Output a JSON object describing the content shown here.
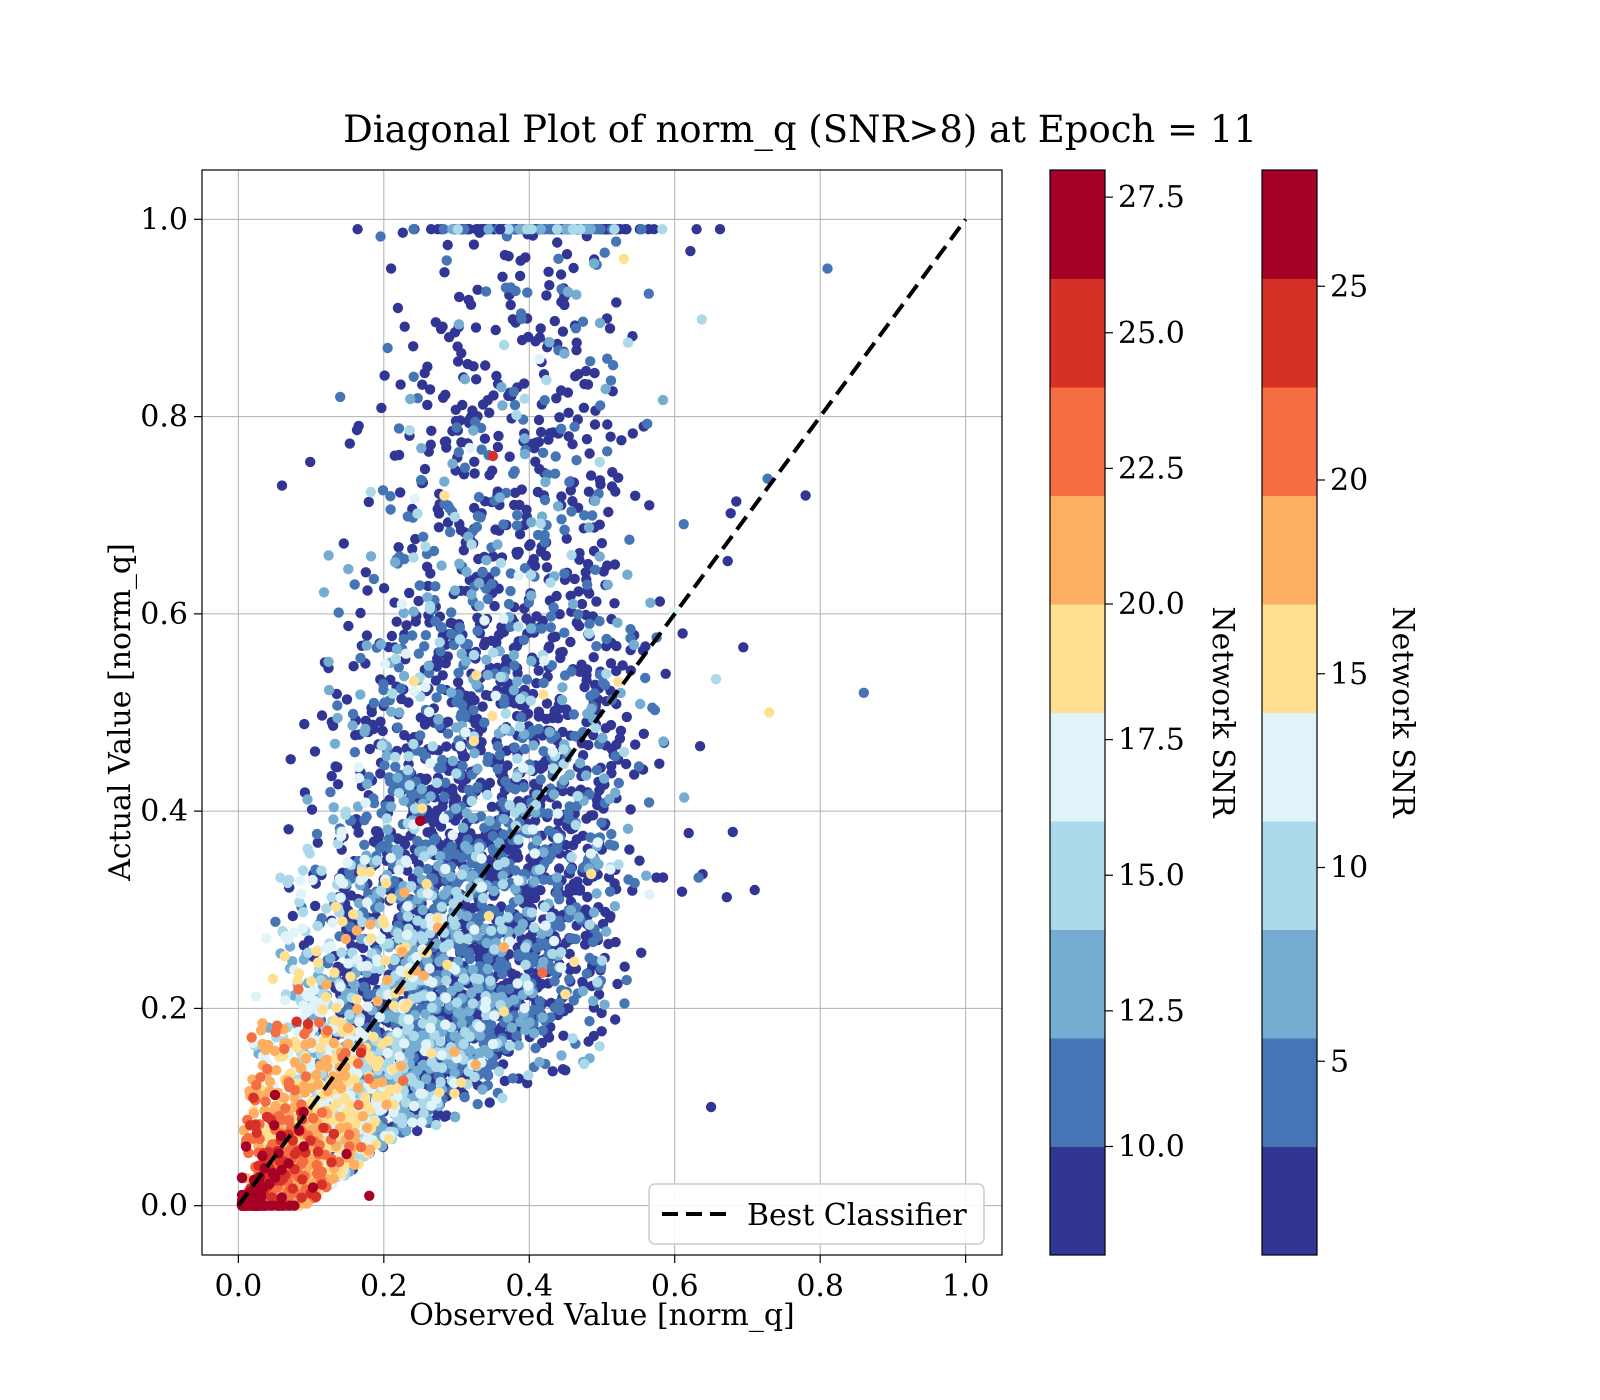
{
  "chart_data": {
    "type": "scatter",
    "title": "Diagonal Plot of norm_q (SNR>8) at Epoch = 11",
    "xlabel": "Observed Value [norm_q]",
    "ylabel": "Actual Value [norm_q]",
    "xlim": [
      -0.05,
      1.05
    ],
    "ylim": [
      -0.05,
      1.05
    ],
    "x_ticks": [
      "0.0",
      "0.2",
      "0.4",
      "0.6",
      "0.8",
      "1.0"
    ],
    "y_ticks": [
      "0.0",
      "0.2",
      "0.4",
      "0.6",
      "0.8",
      "1.0"
    ],
    "grid": true,
    "legend": {
      "position": "lower-right",
      "entries": [
        "Best Classifier"
      ]
    },
    "reference_line": {
      "name": "Best Classifier",
      "x": [
        0,
        1
      ],
      "y": [
        0,
        1
      ],
      "style": "dashed",
      "color": "#000000"
    },
    "colormap_colors": [
      "#313695",
      "#4575b4",
      "#74add1",
      "#abd9e9",
      "#e0f3f8",
      "#fee090",
      "#fdae61",
      "#f46d43",
      "#d73027",
      "#a50026"
    ],
    "colorbars": [
      {
        "label": "Network SNR",
        "range": [
          8,
          28
        ],
        "ticks": [
          "10.0",
          "12.5",
          "15.0",
          "17.5",
          "20.0",
          "22.5",
          "25.0",
          "27.5"
        ]
      },
      {
        "label": "Network SNR",
        "range": [
          0,
          28
        ],
        "ticks": [
          "5",
          "10",
          "15",
          "20",
          "25"
        ]
      }
    ],
    "sample_points": [
      {
        "x": 0.36,
        "y": 0.99,
        "snr": 9
      },
      {
        "x": 0.21,
        "y": 0.95,
        "snr": 9
      },
      {
        "x": 0.44,
        "y": 0.96,
        "snr": 11
      },
      {
        "x": 0.53,
        "y": 0.96,
        "snr": 19
      },
      {
        "x": 0.81,
        "y": 0.95,
        "snr": 11
      },
      {
        "x": 0.14,
        "y": 0.82,
        "snr": 11
      },
      {
        "x": 0.06,
        "y": 0.73,
        "snr": 9
      },
      {
        "x": 0.78,
        "y": 0.72,
        "snr": 9
      },
      {
        "x": 0.86,
        "y": 0.52,
        "snr": 11
      },
      {
        "x": 0.73,
        "y": 0.5,
        "snr": 19
      },
      {
        "x": 0.71,
        "y": 0.32,
        "snr": 9
      },
      {
        "x": 0.65,
        "y": 0.1,
        "snr": 9
      },
      {
        "x": 0.09,
        "y": 0.06,
        "snr": 26
      },
      {
        "x": 0.18,
        "y": 0.01,
        "snr": 27
      },
      {
        "x": 0.25,
        "y": 0.39,
        "snr": 26
      },
      {
        "x": 0.35,
        "y": 0.76,
        "snr": 24
      }
    ]
  }
}
